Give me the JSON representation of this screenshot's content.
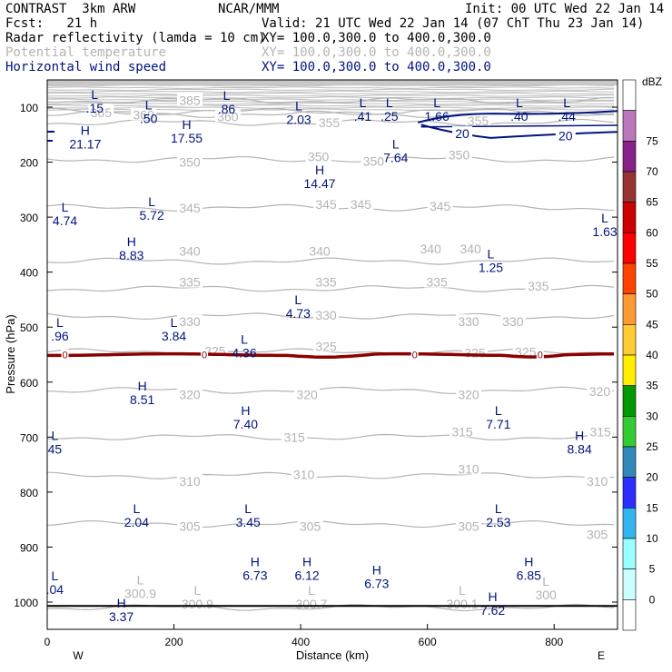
{
  "header": {
    "model": "CONTRAST  3km ARW",
    "center": "NCAR/MMM",
    "init": "Init: 00 UTC Wed 22 Jan 14",
    "fcst": "Fcst:   21 h",
    "valid": "Valid: 21 UTC Wed 22 Jan 14 (07 ChT Thu 23 Jan 14)",
    "fields": [
      {
        "name": "Radar reflectivity (lamda = 10 cm)",
        "xy": "XY= 100.0,300.0 to 400.0,300.0",
        "color": "#000000"
      },
      {
        "name": "Potential temperature",
        "xy": "XY= 100.0,300.0 to 400.0,300.0",
        "color": "#b4b4b4"
      },
      {
        "name": "Horizontal wind speed",
        "xy": "XY= 100.0,300.0 to 400.0,300.0",
        "color": "#00147e"
      }
    ]
  },
  "chart_data": {
    "type": "cross-section",
    "xlabel": "Distance (km)",
    "ylabel": "Pressure (hPa)",
    "xlim": [
      0,
      900
    ],
    "ylim": [
      1050,
      70
    ],
    "xticks": [
      0,
      200,
      400,
      600,
      800
    ],
    "yticks": [
      100,
      200,
      300,
      400,
      500,
      600,
      700,
      800,
      900,
      1000
    ],
    "x_end_labels": {
      "left": "W",
      "right": "E"
    },
    "colorbar": {
      "unit": "dBZ",
      "levels": [
        0,
        5,
        10,
        15,
        20,
        25,
        30,
        35,
        40,
        45,
        50,
        55,
        60,
        65,
        70,
        75
      ],
      "colors": [
        "#ffffff",
        "#ccffff",
        "#99ffff",
        "#33b5f2",
        "#2d2dff",
        "#3388bb",
        "#33cc33",
        "#009900",
        "#ffee00",
        "#ffcc33",
        "#ff9933",
        "#ff4400",
        "#ff0000",
        "#cc0000",
        "#993333",
        "#882288",
        "#bb77bb",
        "#ffffff"
      ]
    },
    "theta_contours": [
      {
        "level": 300,
        "p": 1010
      },
      {
        "level": 305,
        "p": 858
      },
      {
        "level": 310,
        "p": 770
      },
      {
        "level": 315,
        "p": 700
      },
      {
        "level": 320,
        "p": 615
      },
      {
        "level": 325,
        "p": 545
      },
      {
        "level": 330,
        "p": 480
      },
      {
        "level": 335,
        "p": 430
      },
      {
        "level": 340,
        "p": 380
      },
      {
        "level": 345,
        "p": 283
      },
      {
        "level": 350,
        "p": 195
      },
      {
        "level": 355,
        "p": 128
      },
      {
        "level": 360,
        "p": 113
      },
      {
        "level": 365,
        "p": 108
      },
      {
        "level": 385,
        "p": 88
      }
    ],
    "theta_labels": [
      {
        "t": "385",
        "x": 225,
        "p": 88
      },
      {
        "t": "365",
        "x": 85,
        "p": 110
      },
      {
        "t": "360",
        "x": 152,
        "p": 114
      },
      {
        "t": "360",
        "x": 285,
        "p": 117
      },
      {
        "t": "355",
        "x": 445,
        "p": 128
      },
      {
        "t": "355",
        "x": 680,
        "p": 125
      },
      {
        "t": "350",
        "x": 225,
        "p": 200
      },
      {
        "t": "350",
        "x": 428,
        "p": 190
      },
      {
        "t": "350",
        "x": 515,
        "p": 198
      },
      {
        "t": "350",
        "x": 650,
        "p": 187
      },
      {
        "t": "345",
        "x": 225,
        "p": 283
      },
      {
        "t": "345",
        "x": 440,
        "p": 277
      },
      {
        "t": "345",
        "x": 495,
        "p": 277
      },
      {
        "t": "345",
        "x": 620,
        "p": 280
      },
      {
        "t": "340",
        "x": 225,
        "p": 362
      },
      {
        "t": "340",
        "x": 430,
        "p": 362
      },
      {
        "t": "340",
        "x": 605,
        "p": 358
      },
      {
        "t": "340",
        "x": 668,
        "p": 358
      },
      {
        "t": "335",
        "x": 225,
        "p": 418
      },
      {
        "t": "335",
        "x": 440,
        "p": 418
      },
      {
        "t": "335",
        "x": 615,
        "p": 418
      },
      {
        "t": "335",
        "x": 775,
        "p": 425
      },
      {
        "t": "330",
        "x": 225,
        "p": 490
      },
      {
        "t": "330",
        "x": 440,
        "p": 478
      },
      {
        "t": "330",
        "x": 665,
        "p": 490
      },
      {
        "t": "330",
        "x": 735,
        "p": 490
      },
      {
        "t": "325",
        "x": 265,
        "p": 543
      },
      {
        "t": "325",
        "x": 440,
        "p": 535
      },
      {
        "t": "325",
        "x": 675,
        "p": 547
      },
      {
        "t": "325",
        "x": 755,
        "p": 545
      },
      {
        "t": "320",
        "x": 225,
        "p": 623
      },
      {
        "t": "320",
        "x": 410,
        "p": 623
      },
      {
        "t": "320",
        "x": 665,
        "p": 623
      },
      {
        "t": "320",
        "x": 872,
        "p": 617
      },
      {
        "t": "315",
        "x": 390,
        "p": 700
      },
      {
        "t": "315",
        "x": 655,
        "p": 690
      },
      {
        "t": "315",
        "x": 873,
        "p": 690
      },
      {
        "t": "310",
        "x": 225,
        "p": 780
      },
      {
        "t": "310",
        "x": 405,
        "p": 768
      },
      {
        "t": "310",
        "x": 665,
        "p": 758
      },
      {
        "t": "310",
        "x": 868,
        "p": 780
      },
      {
        "t": "305",
        "x": 225,
        "p": 862
      },
      {
        "t": "305",
        "x": 415,
        "p": 862
      },
      {
        "t": "305",
        "x": 665,
        "p": 862
      },
      {
        "t": "305",
        "x": 868,
        "p": 877
      }
    ],
    "zero_line": {
      "label": "0",
      "p": 550,
      "label_x": [
        28,
        248,
        580,
        778
      ]
    },
    "wind_contour": {
      "level": 20,
      "label_positions": [
        [
          655,
          148
        ],
        [
          818,
          152
        ]
      ]
    },
    "extrema": [
      {
        "type": "L",
        "value": ".15",
        "x": 75,
        "p": 85,
        "color": "navy"
      },
      {
        "type": "L",
        "value": ".50",
        "x": 160,
        "p": 104,
        "color": "navy"
      },
      {
        "type": "L",
        "value": ".86",
        "x": 283,
        "p": 87,
        "color": "navy"
      },
      {
        "type": "L",
        "value": "2.03",
        "x": 397,
        "p": 106,
        "color": "navy"
      },
      {
        "type": "L",
        "value": ".41",
        "x": 498,
        "p": 100,
        "color": "navy"
      },
      {
        "type": "L",
        "value": ".25",
        "x": 540,
        "p": 100,
        "color": "navy"
      },
      {
        "type": "L",
        "value": "1.66",
        "x": 615,
        "p": 100,
        "color": "navy"
      },
      {
        "type": "L",
        "value": ".40",
        "x": 745,
        "p": 100,
        "color": "navy"
      },
      {
        "type": "L",
        "value": ".44",
        "x": 820,
        "p": 100,
        "color": "navy"
      },
      {
        "type": "H",
        "value": "21.17",
        "x": 60,
        "p": 150,
        "color": "navy"
      },
      {
        "type": "H",
        "value": "17.55",
        "x": 220,
        "p": 140,
        "color": "navy"
      },
      {
        "type": "L",
        "value": "7.64",
        "x": 550,
        "p": 175,
        "color": "navy"
      },
      {
        "type": "H",
        "value": "14.47",
        "x": 430,
        "p": 222,
        "color": "navy"
      },
      {
        "type": "L",
        "value": "5.72",
        "x": 165,
        "p": 280,
        "color": "navy"
      },
      {
        "type": "L",
        "value": "4.74",
        "x": 28,
        "p": 290,
        "color": "navy"
      },
      {
        "type": "L",
        "value": "1.63",
        "x": 880,
        "p": 310,
        "color": "navy"
      },
      {
        "type": "H",
        "value": "8.83",
        "x": 133,
        "p": 353,
        "color": "navy"
      },
      {
        "type": "L",
        "value": "1.25",
        "x": 700,
        "p": 375,
        "color": "navy"
      },
      {
        "type": "L",
        "value": "4.73",
        "x": 396,
        "p": 458,
        "color": "navy"
      },
      {
        "type": "L",
        "value": ".96",
        "x": 20,
        "p": 500,
        "color": "navy"
      },
      {
        "type": "L",
        "value": "3.84",
        "x": 200,
        "p": 500,
        "color": "navy"
      },
      {
        "type": "L",
        "value": "4.36",
        "x": 311,
        "p": 530,
        "color": "navy"
      },
      {
        "type": "H",
        "value": "8.51",
        "x": 150,
        "p": 615,
        "color": "navy"
      },
      {
        "type": "H",
        "value": "7.40",
        "x": 313,
        "p": 660,
        "color": "navy"
      },
      {
        "type": "L",
        "value": "7.71",
        "x": 712,
        "p": 660,
        "color": "navy"
      },
      {
        "type": "H",
        "value": "8.84",
        "x": 840,
        "p": 705,
        "color": "navy"
      },
      {
        "type": "L",
        "value": "45",
        "x": 12,
        "p": 705,
        "color": "navy"
      },
      {
        "type": "L",
        "value": "2.04",
        "x": 141,
        "p": 838,
        "color": "navy"
      },
      {
        "type": "L",
        "value": "3.45",
        "x": 317,
        "p": 838,
        "color": "navy"
      },
      {
        "type": "L",
        "value": "2.53",
        "x": 712,
        "p": 838,
        "color": "navy"
      },
      {
        "type": "H",
        "value": "6.73",
        "x": 328,
        "p": 935,
        "color": "navy"
      },
      {
        "type": "H",
        "value": "6.12",
        "x": 410,
        "p": 935,
        "color": "navy"
      },
      {
        "type": "H",
        "value": "6.73",
        "x": 520,
        "p": 950,
        "color": "navy"
      },
      {
        "type": "H",
        "value": "6.85",
        "x": 760,
        "p": 935,
        "color": "navy"
      },
      {
        "type": "L",
        "value": ".04",
        "x": 12,
        "p": 960,
        "color": "navy"
      },
      {
        "type": "L",
        "value": "300.9",
        "x": 147,
        "p": 968,
        "color": "gray"
      },
      {
        "type": "L",
        "value": "300.9",
        "x": 237,
        "p": 987,
        "color": "gray"
      },
      {
        "type": "L",
        "value": "300.7",
        "x": 417,
        "p": 987,
        "color": "gray"
      },
      {
        "type": "L",
        "value": "300.1",
        "x": 655,
        "p": 987,
        "color": "gray"
      },
      {
        "type": "L",
        "value": "300",
        "x": 787,
        "p": 970,
        "color": "gray"
      },
      {
        "type": "H",
        "value": "3.37",
        "x": 117,
        "p": 1010,
        "color": "navy"
      },
      {
        "type": "H",
        "value": "7.62",
        "x": 703,
        "p": 998,
        "color": "navy"
      }
    ]
  }
}
